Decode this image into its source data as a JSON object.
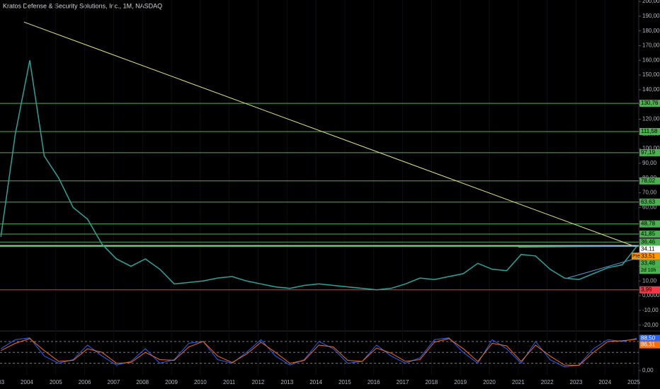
{
  "chart_data": [
    {
      "type": "line",
      "title": "Kratos Defense & Security Solutions, Inc., 1M, NASDAQ",
      "color": "#26a69a",
      "x": [
        2003.1,
        2003.6,
        2004.1,
        2004.6,
        2005.1,
        2005.6,
        2006.1,
        2006.6,
        2007.1,
        2007.6,
        2008.1,
        2008.6,
        2009.1,
        2009.6,
        2010.1,
        2010.6,
        2011.1,
        2011.6,
        2012.1,
        2012.6,
        2013.1,
        2013.6,
        2014.1,
        2014.6,
        2015.1,
        2015.6,
        2016.1,
        2016.6,
        2017.1,
        2017.6,
        2018.1,
        2018.6,
        2019.1,
        2019.6,
        2020.1,
        2020.6,
        2021.1,
        2021.6,
        2022.1,
        2022.6,
        2023.1,
        2023.6,
        2024.1,
        2024.6,
        2025.1
      ],
      "values": [
        40,
        110,
        160,
        95,
        80,
        60,
        52,
        35,
        25,
        20,
        25,
        18,
        8,
        9,
        10,
        12,
        13,
        10,
        8,
        6,
        5,
        7,
        8,
        7,
        6,
        5,
        4,
        5,
        8,
        12,
        11,
        13,
        15,
        22,
        18,
        17,
        28,
        27,
        18,
        12,
        11,
        15,
        19,
        21,
        33.48
      ],
      "xlim": [
        2003.07,
        2025.17
      ],
      "xticks": [
        2003,
        2004,
        2005,
        2006,
        2007,
        2008,
        2009,
        2010,
        2011,
        2012,
        2013,
        2014,
        2015,
        2016,
        2017,
        2018,
        2019,
        2020,
        2021,
        2022,
        2023,
        2024,
        2025
      ],
      "ylim": [
        -24,
        201
      ],
      "yticks": [
        {
          "value": 200,
          "label": "200,00"
        },
        {
          "value": 190,
          "label": "190,00"
        },
        {
          "value": 180,
          "label": "180,00"
        },
        {
          "value": 170,
          "label": "170,00"
        },
        {
          "value": 160,
          "label": "160,00"
        },
        {
          "value": 150,
          "label": "150,00"
        },
        {
          "value": 140,
          "label": "140,00"
        },
        {
          "value": 130,
          "label": "130,00"
        },
        {
          "value": 120,
          "label": "120,00"
        },
        {
          "value": 110,
          "label": "110,00"
        },
        {
          "value": 100,
          "label": "100,00"
        },
        {
          "value": 90,
          "label": "90,00"
        },
        {
          "value": 80,
          "label": "80,00"
        },
        {
          "value": 70,
          "label": "70,00"
        },
        {
          "value": 60,
          "label": "60,00"
        },
        {
          "value": 20,
          "label": "20,00"
        },
        {
          "value": 10,
          "label": "10,00"
        },
        {
          "value": 0,
          "label": "0,0000"
        },
        {
          "value": -10,
          "label": "-10,00"
        },
        {
          "value": -20,
          "label": "-20,00"
        }
      ],
      "levels": [
        {
          "value": 130.76,
          "label": "130,76",
          "color": "#4caf50"
        },
        {
          "value": 111.58,
          "label": "111,58",
          "color": "#4caf50"
        },
        {
          "value": 97.19,
          "label": "97,19",
          "color": "#4caf50"
        },
        {
          "value": 78.02,
          "label": "78,02",
          "color": "#4caf50"
        },
        {
          "value": 63.63,
          "label": "63,63",
          "color": "#4caf50"
        },
        {
          "value": 48.78,
          "label": "48,78",
          "color": "#4caf50"
        },
        {
          "value": 41.85,
          "label": "41,85",
          "color": "#4caf50"
        },
        {
          "value": 36.46,
          "label": "36,46",
          "color": "#4caf50"
        },
        {
          "value": 34.11,
          "label": "34,11",
          "color": "#ffffff"
        },
        {
          "value": 33.51,
          "label": "33,51",
          "color": "#ff9800"
        },
        {
          "value": 33.48,
          "label": "33,48",
          "color": "#4caf50"
        },
        {
          "value": 3.99,
          "label": "3,99",
          "color": "#f23645"
        }
      ],
      "pre_label": "Pre",
      "countdown": "2d 10h",
      "trendlines": [
        {
          "x": [
            2003.9,
            2025.1
          ],
          "y": [
            186,
            33
          ],
          "color": "#e6e67a"
        },
        {
          "x": [
            2021.0,
            2025.1
          ],
          "y": [
            33,
            33.6
          ],
          "color": "#5b9bd5"
        },
        {
          "x": [
            2022.7,
            2025.2
          ],
          "y": [
            12,
            26
          ],
          "color": "#5b9bd5"
        }
      ]
    },
    {
      "type": "line",
      "x": [
        2003.1,
        2003.6,
        2004.1,
        2004.6,
        2005.1,
        2005.6,
        2006.1,
        2006.6,
        2007.1,
        2007.6,
        2008.1,
        2008.6,
        2009.1,
        2009.6,
        2010.1,
        2010.6,
        2011.1,
        2011.6,
        2012.1,
        2012.6,
        2013.1,
        2013.6,
        2014.1,
        2014.6,
        2015.1,
        2015.6,
        2016.1,
        2016.6,
        2017.1,
        2017.6,
        2018.1,
        2018.6,
        2019.1,
        2019.6,
        2020.1,
        2020.6,
        2021.1,
        2021.6,
        2022.1,
        2022.6,
        2023.1,
        2023.6,
        2024.1,
        2024.6,
        2025.1
      ],
      "series": [
        {
          "color": "#2962ff",
          "values": [
            60,
            85,
            90,
            40,
            20,
            30,
            70,
            40,
            15,
            25,
            60,
            20,
            30,
            75,
            80,
            30,
            20,
            50,
            85,
            40,
            15,
            30,
            80,
            60,
            20,
            25,
            70,
            40,
            20,
            35,
            85,
            90,
            50,
            20,
            85,
            60,
            20,
            80,
            30,
            10,
            15,
            60,
            85,
            80,
            88.5
          ],
          "value_label": "88,50"
        },
        {
          "color": "#ff6d00",
          "values": [
            55,
            75,
            88,
            55,
            25,
            28,
            60,
            50,
            20,
            22,
            50,
            30,
            28,
            65,
            80,
            40,
            22,
            45,
            78,
            50,
            20,
            28,
            70,
            65,
            28,
            25,
            62,
            48,
            25,
            30,
            78,
            88,
            60,
            25,
            75,
            68,
            25,
            70,
            40,
            15,
            14,
            50,
            80,
            82,
            86.31
          ],
          "value_label": "86,31"
        }
      ],
      "ylim": [
        -12,
        105
      ],
      "yticks": [
        {
          "value": 0,
          "label": "0,00"
        }
      ],
      "hlines": [
        80,
        50,
        20
      ]
    }
  ]
}
